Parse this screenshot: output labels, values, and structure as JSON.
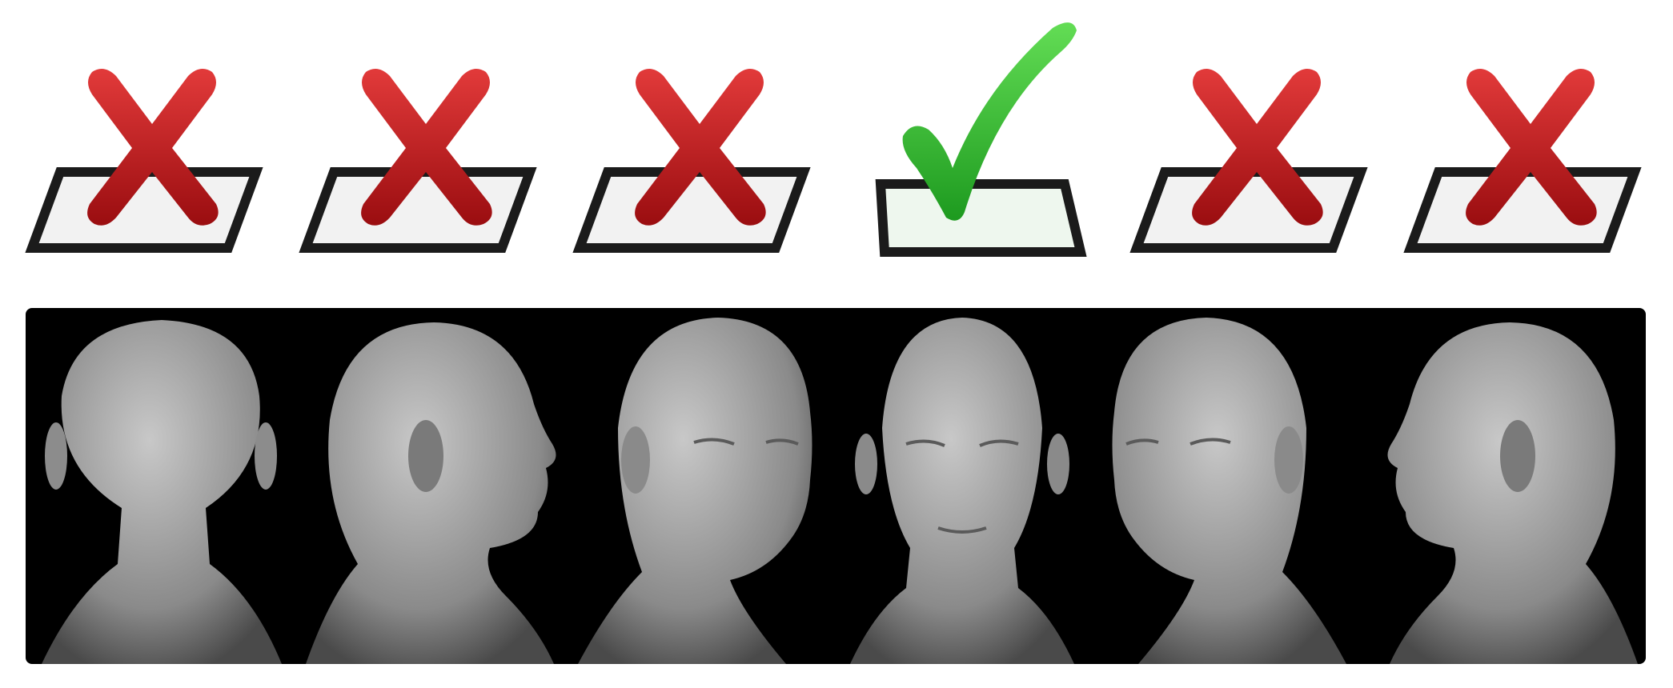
{
  "marks": [
    {
      "type": "cross",
      "icon": "red-x-icon",
      "color": "#c0141a"
    },
    {
      "type": "cross",
      "icon": "red-x-icon",
      "color": "#c0141a"
    },
    {
      "type": "cross",
      "icon": "red-x-icon",
      "color": "#c0141a"
    },
    {
      "type": "check",
      "icon": "green-check-icon",
      "color": "#2fb32a"
    },
    {
      "type": "cross",
      "icon": "red-x-icon",
      "color": "#c0141a"
    },
    {
      "type": "cross",
      "icon": "red-x-icon",
      "color": "#c0141a"
    }
  ],
  "views": [
    {
      "name": "back",
      "icon": "head-back-view-icon"
    },
    {
      "name": "right-profile-rear",
      "icon": "head-profile-right-icon"
    },
    {
      "name": "three-quarter-right",
      "icon": "head-three-quarter-right-icon"
    },
    {
      "name": "front",
      "icon": "head-front-view-icon"
    },
    {
      "name": "three-quarter-left",
      "icon": "head-three-quarter-left-icon"
    },
    {
      "name": "left-profile",
      "icon": "head-profile-left-icon"
    }
  ],
  "colors": {
    "panel": "#000000",
    "box": "#1b1b1b",
    "head": "#9a9a9a"
  }
}
